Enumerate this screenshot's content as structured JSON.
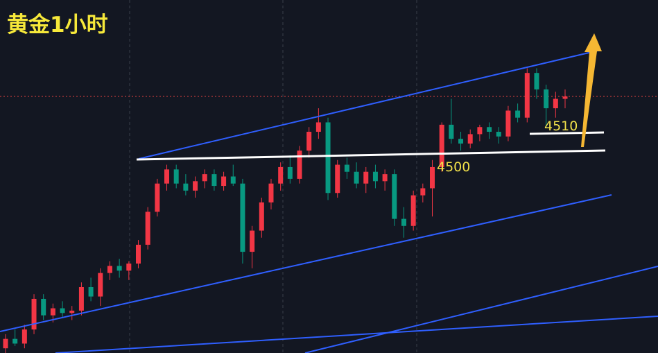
{
  "chart_data": {
    "type": "candlestick",
    "title": "黄金1小时",
    "annotations": [
      "4510",
      "4500"
    ],
    "ylim": [
      4416,
      4566
    ],
    "up_color": "#f23645",
    "down_color": "#089981",
    "open": [
      4418,
      4422,
      4420,
      4426,
      4439,
      4432,
      4435,
      4433,
      4434,
      4444,
      4440,
      4450,
      4453,
      4451,
      4454,
      4462,
      4476,
      4488,
      4494,
      4488,
      4485,
      4489,
      4492,
      4487,
      4491,
      4488,
      4459,
      4468,
      4480,
      4488,
      4495,
      4490,
      4502,
      4510,
      4514,
      4484,
      4496,
      4493,
      4488,
      4493,
      4489,
      4492,
      4473,
      4470,
      4483,
      4486,
      4495,
      4513,
      4507,
      4505,
      4509,
      4512,
      4510,
      4508,
      4519,
      4516,
      4535,
      4528,
      4520,
      4524
    ],
    "high": [
      4424,
      4426,
      4428,
      4441,
      4441,
      4437,
      4438,
      4436,
      4446,
      4448,
      4452,
      4455,
      4456,
      4455,
      4464,
      4478,
      4490,
      4496,
      4496,
      4492,
      4491,
      4494,
      4494,
      4493,
      4496,
      4490,
      4470,
      4482,
      4490,
      4497,
      4500,
      4504,
      4512,
      4520,
      4516,
      4498,
      4499,
      4497,
      4495,
      4496,
      4494,
      4494,
      4478,
      4485,
      4488,
      4498,
      4514,
      4524,
      4510,
      4511,
      4513,
      4514,
      4512,
      4521,
      4522,
      4537,
      4537,
      4530,
      4527,
      4528
    ],
    "low": [
      4416,
      4419,
      4418,
      4424,
      4430,
      4429,
      4431,
      4430,
      4432,
      4438,
      4436,
      4447,
      4448,
      4447,
      4452,
      4460,
      4474,
      4485,
      4486,
      4483,
      4482,
      4486,
      4485,
      4485,
      4487,
      4454,
      4452,
      4465,
      4477,
      4485,
      4488,
      4488,
      4499,
      4507,
      4481,
      4482,
      4490,
      4486,
      4484,
      4486,
      4485,
      4470,
      4465,
      4468,
      4480,
      4474,
      4493,
      4505,
      4502,
      4503,
      4506,
      4507,
      4505,
      4506,
      4514,
      4514,
      4524,
      4512,
      4516,
      4520
    ],
    "close": [
      4422,
      4420,
      4426,
      4439,
      4432,
      4435,
      4433,
      4434,
      4444,
      4440,
      4450,
      4453,
      4451,
      4454,
      4462,
      4476,
      4488,
      4494,
      4488,
      4485,
      4489,
      4492,
      4487,
      4491,
      4488,
      4459,
      4468,
      4480,
      4488,
      4495,
      4490,
      4502,
      4510,
      4514,
      4484,
      4496,
      4493,
      4488,
      4493,
      4489,
      4492,
      4473,
      4470,
      4483,
      4486,
      4495,
      4513,
      4507,
      4505,
      4509,
      4512,
      4510,
      4508,
      4519,
      4516,
      4535,
      4528,
      4520,
      4524,
      4525
    ]
  }
}
